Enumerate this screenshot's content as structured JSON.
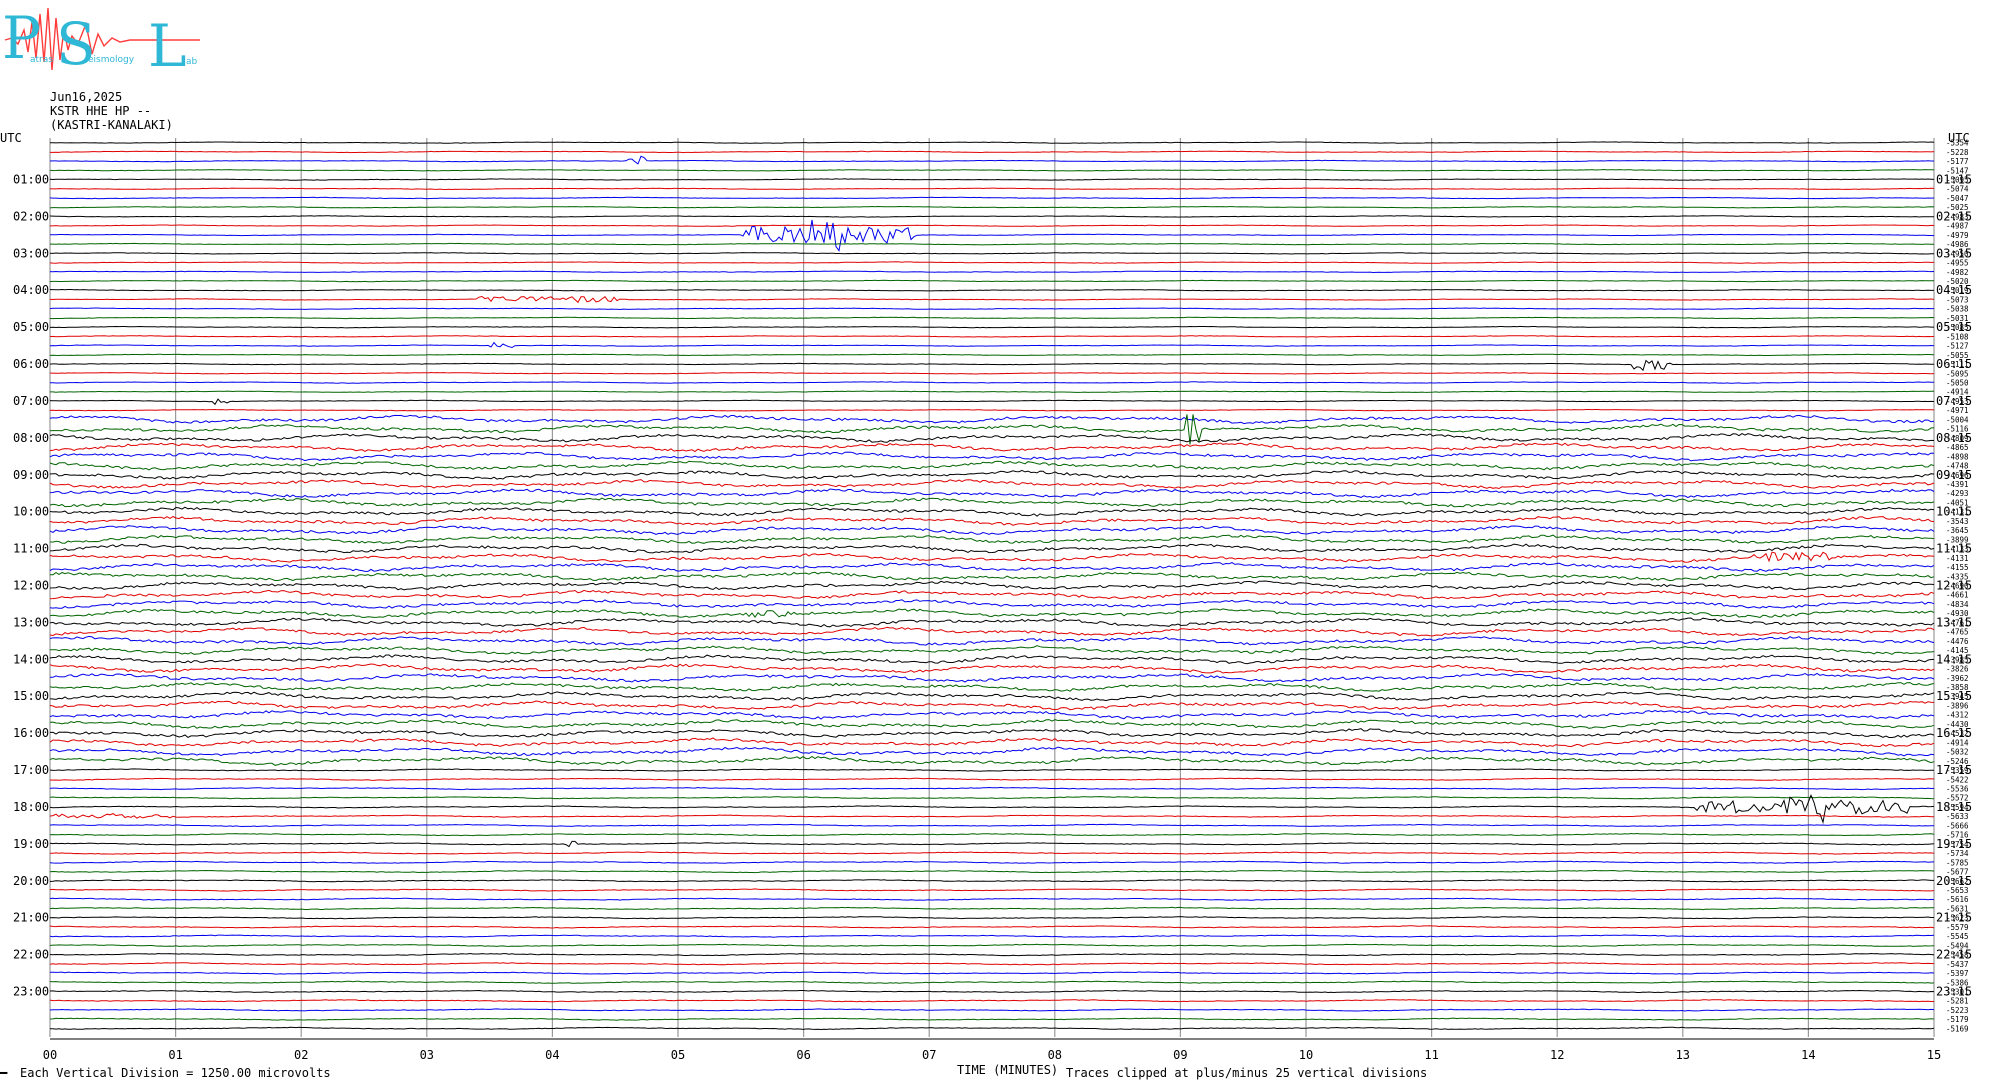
{
  "header": {
    "date": "Jun16,2025",
    "station": "KSTR HHE HP --",
    "location": "(KASTRI-KANALAKI)"
  },
  "logo": {
    "letters": [
      "P",
      "S",
      "L"
    ],
    "subtext": [
      "atras",
      "eismology",
      "ab"
    ],
    "colors": {
      "letters": "#2fb8d6",
      "trace": "#ff3b3b"
    }
  },
  "footer": {
    "scale_note": "Each Vertical Division = 1250.00 microvolts",
    "xlabel": "TIME (MINUTES)",
    "clip_note": "Traces clipped at plus/minus 25 vertical divisions",
    "corner_mark": "━"
  },
  "chart_data": {
    "type": "line",
    "title": "",
    "xlabel": "TIME (MINUTES)",
    "ylabel": "",
    "xlim": [
      0,
      15
    ],
    "x_ticks": [
      "00",
      "01",
      "02",
      "03",
      "04",
      "05",
      "06",
      "07",
      "08",
      "09",
      "10",
      "11",
      "12",
      "13",
      "14",
      "15"
    ],
    "left_axis_title": "UTC",
    "right_axis_title": "UTC",
    "left_labels": [
      "01:00",
      "02:00",
      "03:00",
      "04:00",
      "05:00",
      "06:00",
      "07:00",
      "08:00",
      "09:00",
      "10:00",
      "11:00",
      "12:00",
      "13:00",
      "14:00",
      "15:00",
      "16:00",
      "17:00",
      "18:00",
      "19:00",
      "20:00",
      "21:00",
      "22:00",
      "23:00"
    ],
    "right_labels": [
      "01:15",
      "02:15",
      "03:15",
      "04:15",
      "05:15",
      "06:15",
      "07:15",
      "08:15",
      "09:15",
      "10:15",
      "11:15",
      "12:15",
      "13:15",
      "14:15",
      "15:15",
      "16:15",
      "17:15",
      "18:15",
      "19:15",
      "20:15",
      "21:15",
      "22:15",
      "23:15"
    ],
    "trace_colors": [
      "#000000",
      "#e00000",
      "#0000ee",
      "#006400"
    ],
    "trace_offsets": [
      -5354,
      -5228,
      -5177,
      -5147,
      -5095,
      -5074,
      -5047,
      -5025,
      -4983,
      -4987,
      -4979,
      -4986,
      -4950,
      -4955,
      -4982,
      -5020,
      -5019,
      -5073,
      -5038,
      -5031,
      -5085,
      -5108,
      -5127,
      -5055,
      -5111,
      -5095,
      -5050,
      -4914,
      -4953,
      -4971,
      -5004,
      -5116,
      -4809,
      -4865,
      -4898,
      -4748,
      -4696,
      -4391,
      -4293,
      -4051,
      -4131,
      -3543,
      -3645,
      -3899,
      -4133,
      -4131,
      -4155,
      -4335,
      -4690,
      -4661,
      -4834,
      -4930,
      -4761,
      -4765,
      -4476,
      -4145,
      -3985,
      -3826,
      -3962,
      -3858,
      -3945,
      -3896,
      -4312,
      -4430,
      -4532,
      -4914,
      -5032,
      -5246,
      -5359,
      -5422,
      -5536,
      -5572,
      -5594,
      -5633,
      -5666,
      -5716,
      -5754,
      -5734,
      -5785,
      -5677,
      -5662,
      -5653,
      -5616,
      -5631,
      -5623,
      -5579,
      -5545,
      -5494,
      -5458,
      -5437,
      -5397,
      -5386,
      -5301,
      -5281,
      -5223,
      -5179,
      -5169
    ]
  }
}
